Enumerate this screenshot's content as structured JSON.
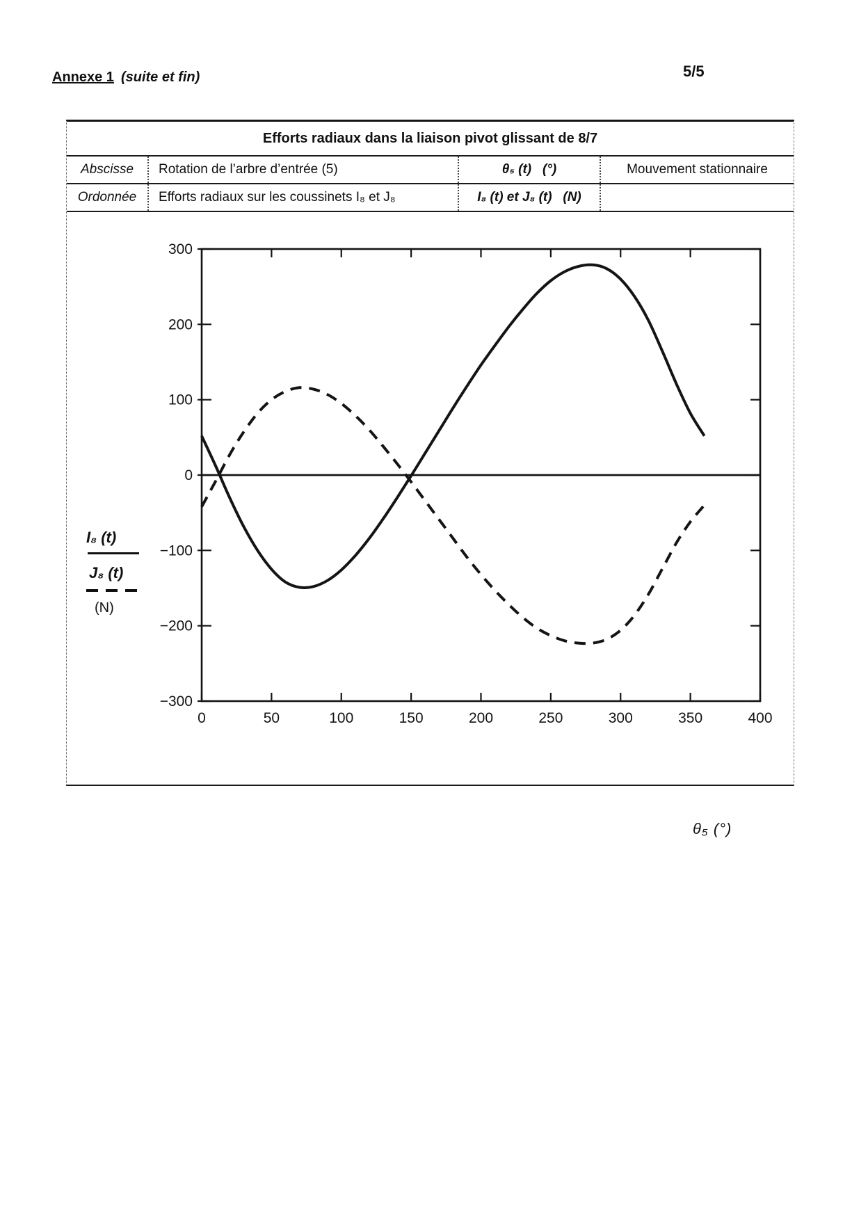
{
  "page": {
    "annex_label": "Annexe 1",
    "annex_suffix": "(suite et fin)",
    "page_number": "5/5"
  },
  "table": {
    "title": "Efforts radiaux dans la liaison pivot glissant de 8/7",
    "rows": [
      {
        "label": "Abscisse",
        "description": "Rotation de l’arbre d’entrée (5)",
        "symbol": "θ₅ (t)   (°)",
        "note": "Mouvement stationnaire"
      },
      {
        "label": "Ordonnée",
        "description": "Efforts radiaux sur les coussinets I₈ et J₈",
        "symbol": "I₈ (t) et J₈ (t)   (N)",
        "note": ""
      }
    ]
  },
  "legend": {
    "series1": "I₈ (t)",
    "series2": "J₈ (t)",
    "unit": "(N)"
  },
  "chart_data": {
    "type": "line",
    "title": "Efforts radiaux dans la liaison pivot glissant de 8/7",
    "xlabel": "θ₅  (°)",
    "ylabel": "I₈ (t) et J₈ (t)  (N)",
    "xlim": [
      0,
      400
    ],
    "ylim": [
      -300,
      300
    ],
    "x_ticks": [
      0,
      50,
      100,
      150,
      200,
      250,
      300,
      350,
      400
    ],
    "y_ticks": [
      300,
      200,
      100,
      0,
      -100,
      -200,
      -300
    ],
    "grid": false,
    "legend_position": "left",
    "zero_line": true,
    "x": [
      0,
      10,
      20,
      30,
      40,
      50,
      60,
      70,
      80,
      90,
      100,
      110,
      120,
      130,
      140,
      150,
      160,
      170,
      180,
      190,
      200,
      210,
      220,
      230,
      240,
      250,
      260,
      270,
      280,
      290,
      300,
      310,
      320,
      330,
      340,
      350,
      360
    ],
    "series": [
      {
        "name": "I₈ (t)",
        "style": "solid",
        "color": "#141414",
        "values": [
          52,
          12,
          -30,
          -68,
          -100,
          -125,
          -142,
          -149,
          -148,
          -140,
          -126,
          -107,
          -84,
          -58,
          -30,
          -1,
          29,
          59,
          89,
          118,
          146,
          172,
          197,
          220,
          241,
          258,
          270,
          277,
          279,
          274,
          260,
          237,
          205,
          164,
          121,
          82,
          52
        ]
      },
      {
        "name": "J₈ (t)",
        "style": "dashed",
        "color": "#141414",
        "values": [
          -42,
          -8,
          27,
          57,
          82,
          100,
          111,
          116,
          114,
          107,
          95,
          79,
          60,
          38,
          15,
          -9,
          -34,
          -59,
          -84,
          -109,
          -132,
          -153,
          -172,
          -189,
          -203,
          -213,
          -220,
          -223,
          -223,
          -218,
          -206,
          -186,
          -158,
          -124,
          -90,
          -62,
          -40
        ]
      }
    ]
  }
}
